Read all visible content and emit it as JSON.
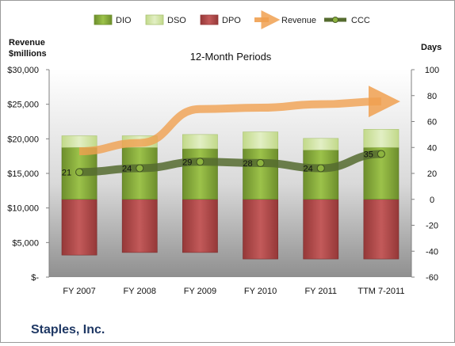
{
  "chart_data": {
    "type": "bar",
    "title": "12-Month Periods",
    "company": "Staples, Inc.",
    "categories": [
      "FY 2007",
      "FY 2008",
      "FY 2009",
      "FY 2010",
      "FY 2011",
      "TTM 7-2011"
    ],
    "left_axis": {
      "label_line1": "Revenue",
      "label_line2": "$millions",
      "ylim": [
        0,
        30000
      ],
      "ticks": [
        0,
        5000,
        10000,
        15000,
        20000,
        25000,
        30000
      ],
      "tick_labels": [
        "$-",
        "$5,000",
        "$10,000",
        "$15,000",
        "$20,000",
        "$25,000",
        "$30,000"
      ]
    },
    "right_axis": {
      "label": "Days",
      "ylim": [
        -60,
        100
      ],
      "ticks": [
        -60,
        -40,
        -20,
        0,
        20,
        40,
        60,
        80,
        100
      ],
      "tick_labels": [
        "-60",
        "-40",
        "-20",
        "0",
        "20",
        "40",
        "60",
        "80",
        "100"
      ]
    },
    "series": [
      {
        "name": "DIO",
        "axis": "right",
        "kind": "stacked-bar",
        "color": "#8db43f",
        "values": [
          40,
          40,
          39,
          39,
          38,
          40
        ]
      },
      {
        "name": "DSO",
        "axis": "right",
        "kind": "stacked-bar",
        "color": "#d3e6a8",
        "values": [
          9,
          9,
          11,
          13,
          9,
          14
        ]
      },
      {
        "name": "DPO",
        "axis": "right",
        "kind": "negative-bar",
        "color": "#b84b4b",
        "values": [
          -43,
          -41,
          -41,
          -46,
          -46,
          -46
        ]
      },
      {
        "name": "Revenue",
        "axis": "left",
        "kind": "line",
        "color": "#f0a050",
        "values": [
          18200,
          19400,
          24300,
          24500,
          25000,
          25400
        ]
      },
      {
        "name": "CCC",
        "axis": "right",
        "kind": "line",
        "color": "#556b2f",
        "values": [
          21,
          24,
          29,
          28,
          24,
          35
        ],
        "data_labels": [
          "21",
          "24",
          "29",
          "28",
          "24",
          "35"
        ]
      }
    ],
    "legend_position": "top",
    "grid": false
  }
}
